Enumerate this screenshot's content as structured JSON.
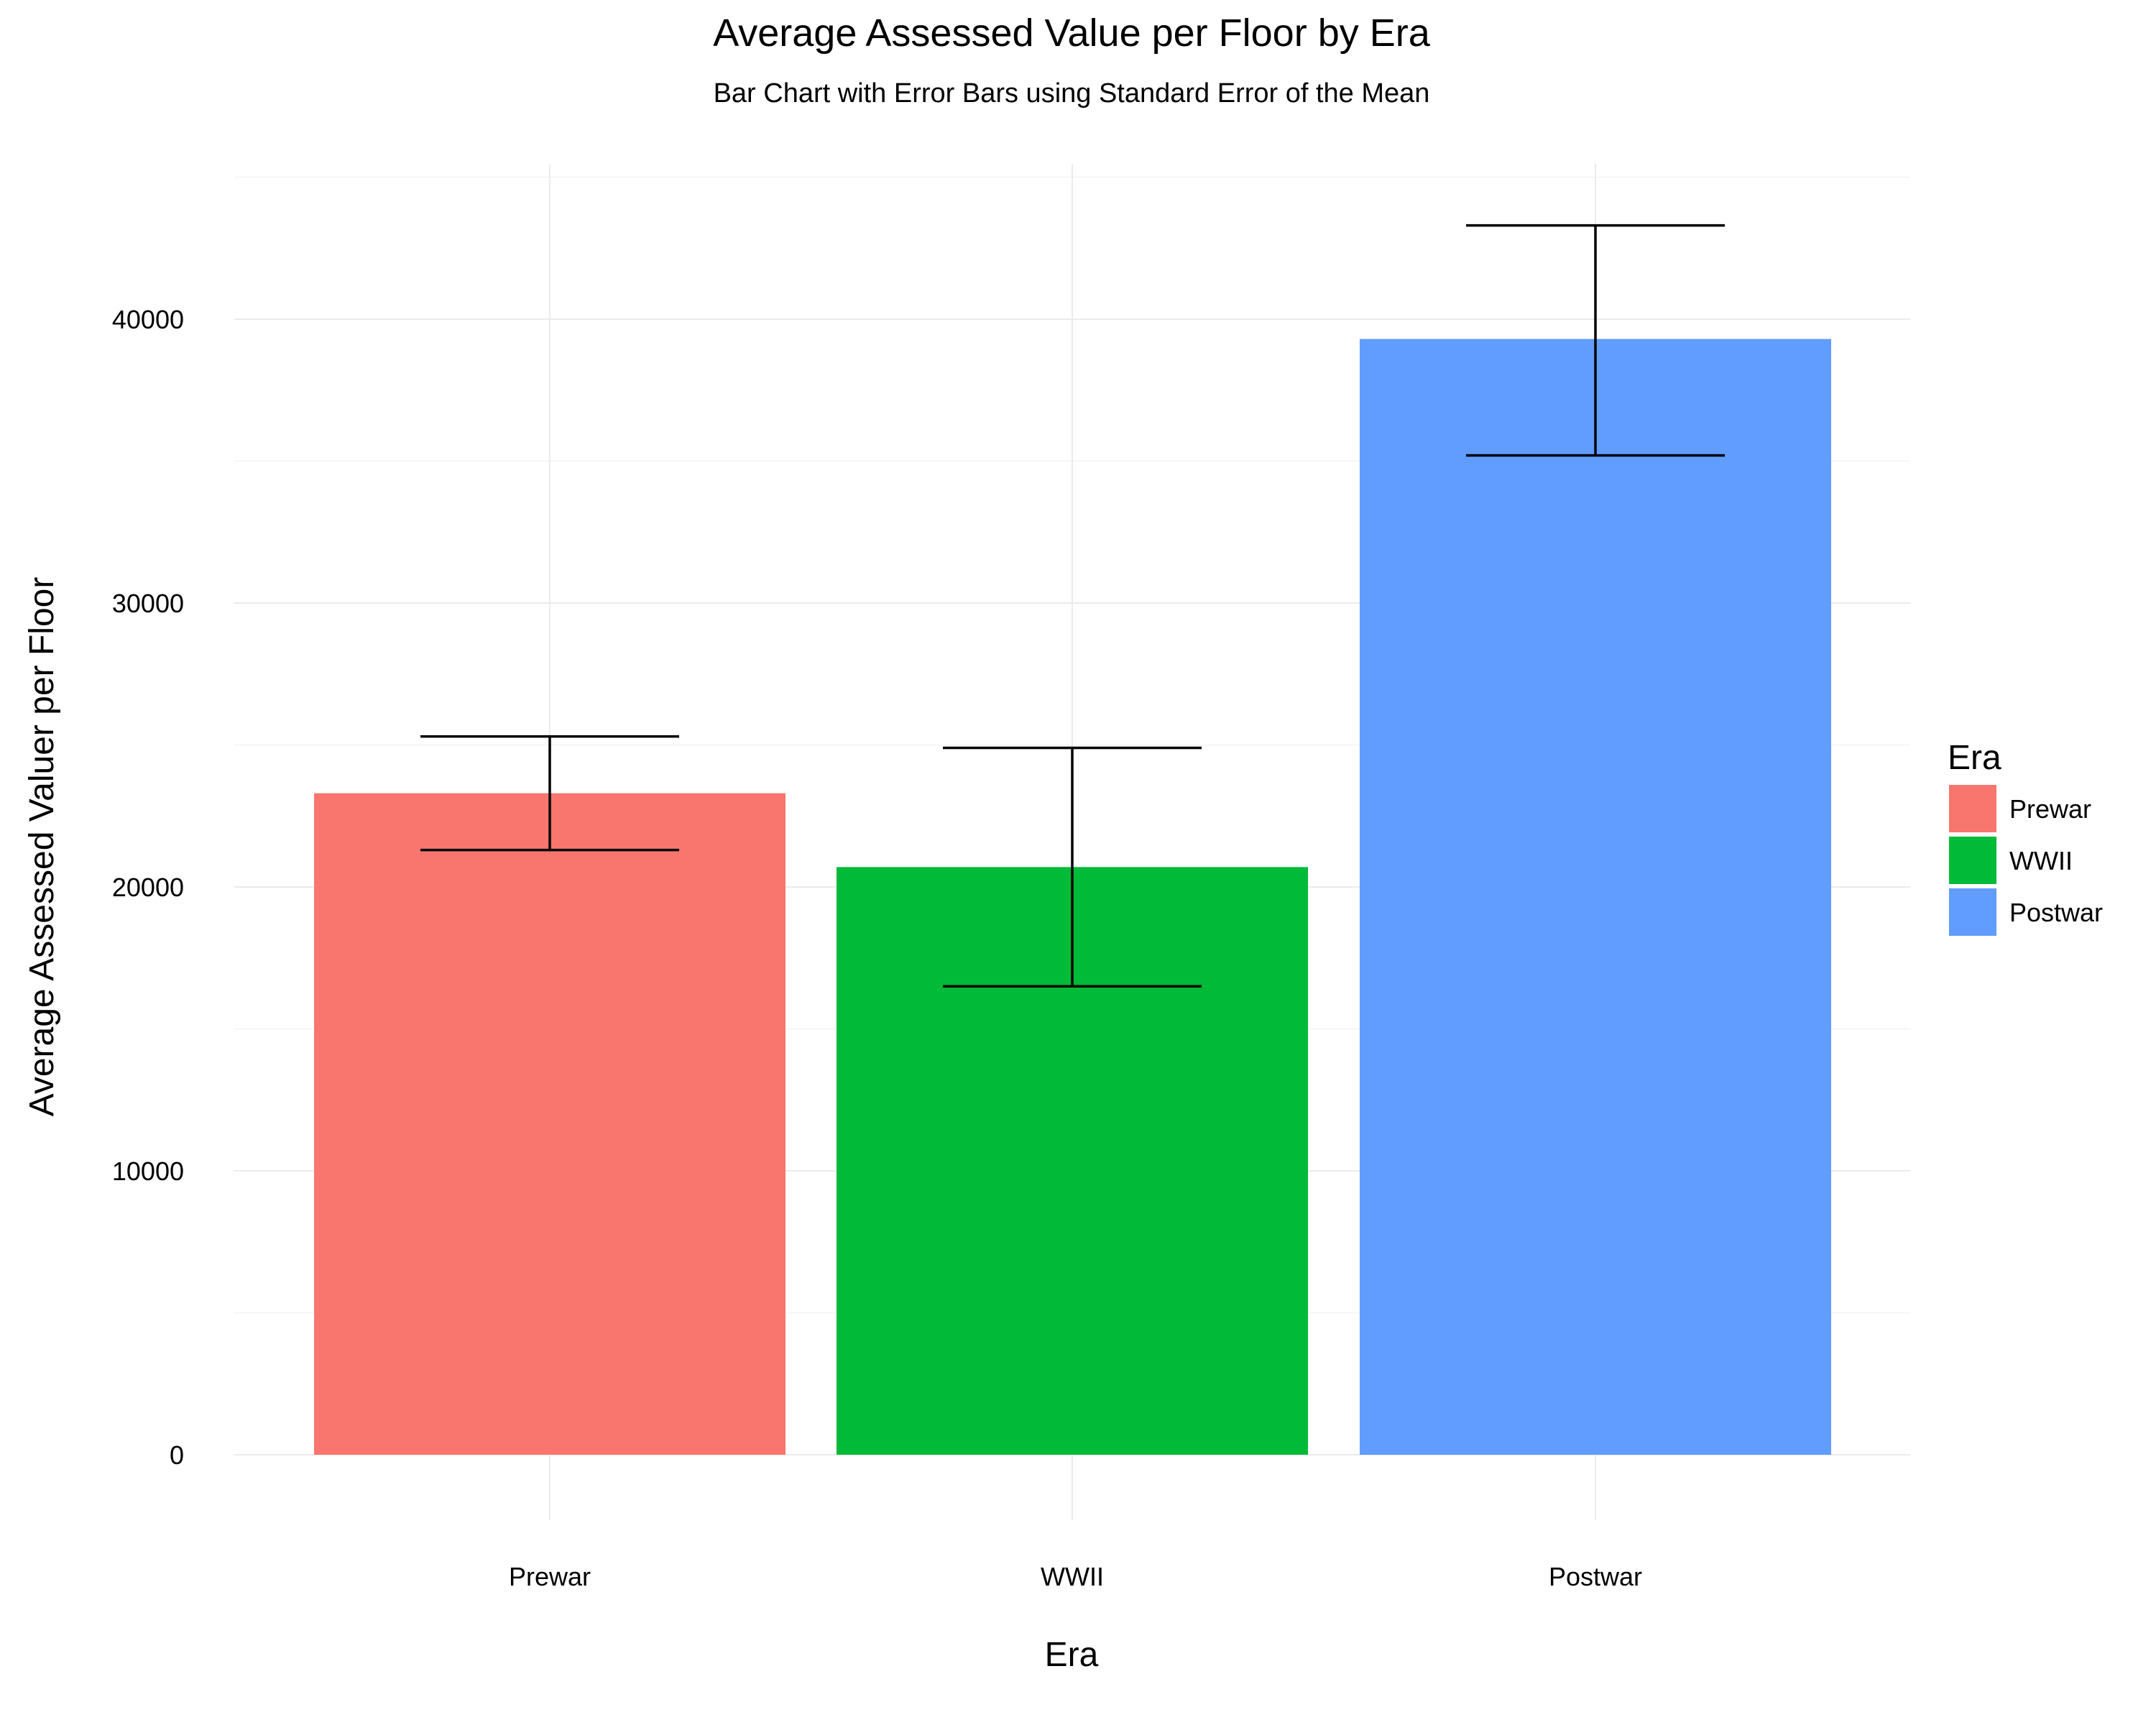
{
  "chart_data": {
    "type": "bar",
    "title": "Average Assessed Value per Floor by Era",
    "subtitle": "Bar Chart with Error Bars using Standard Error of the Mean",
    "xlabel": "Era",
    "ylabel": "Average Assessed Valuer per Floor",
    "categories": [
      "Prewar",
      "WWII",
      "Postwar"
    ],
    "values": [
      23300,
      20700,
      39300
    ],
    "error_bars": {
      "type": "standard error of the mean",
      "lower": [
        21300,
        16500,
        35200
      ],
      "upper": [
        25300,
        24900,
        43300
      ]
    },
    "colors": [
      "#F8766D",
      "#00BA38",
      "#619CFF"
    ],
    "ylim": [
      -2000,
      45000
    ],
    "yticks": [
      0,
      10000,
      20000,
      30000,
      40000
    ],
    "ytick_labels": [
      "0",
      "10000",
      "20000",
      "30000",
      "40000"
    ],
    "grid": true,
    "legend": {
      "title": "Era",
      "position": "right",
      "entries": [
        "Prewar",
        "WWII",
        "Postwar"
      ]
    }
  }
}
